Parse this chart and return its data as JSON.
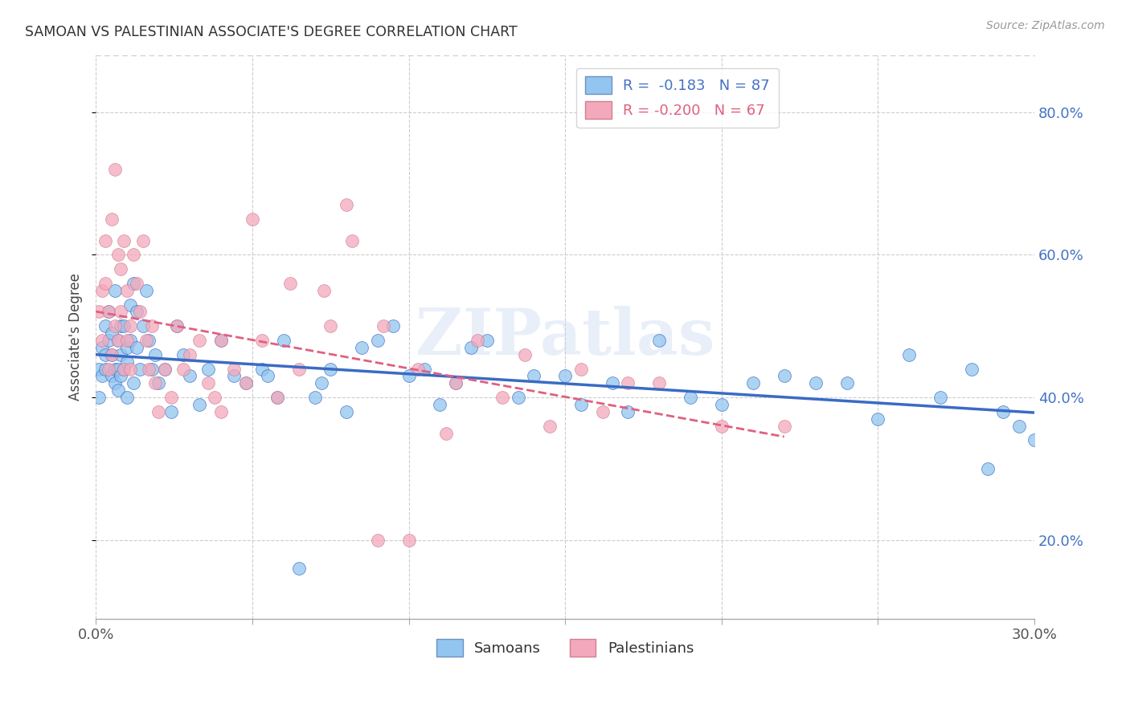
{
  "title": "SAMOAN VS PALESTINIAN ASSOCIATE'S DEGREE CORRELATION CHART",
  "source": "Source: ZipAtlas.com",
  "ylabel": "Associate's Degree",
  "ytick_vals": [
    0.2,
    0.4,
    0.6,
    0.8
  ],
  "xlim": [
    0.0,
    0.3
  ],
  "ylim": [
    0.09,
    0.88
  ],
  "color_samoans": "#92C5F0",
  "color_palestinians": "#F4A8BC",
  "color_line_samoans": "#3A6BC4",
  "color_line_palestinians": "#E06080",
  "watermark": "ZIPatlas",
  "samoans_x": [
    0.001,
    0.001,
    0.002,
    0.002,
    0.003,
    0.003,
    0.003,
    0.004,
    0.004,
    0.005,
    0.005,
    0.005,
    0.006,
    0.006,
    0.006,
    0.007,
    0.007,
    0.007,
    0.008,
    0.008,
    0.008,
    0.009,
    0.009,
    0.01,
    0.01,
    0.01,
    0.011,
    0.011,
    0.012,
    0.012,
    0.013,
    0.013,
    0.014,
    0.015,
    0.016,
    0.017,
    0.018,
    0.019,
    0.02,
    0.022,
    0.024,
    0.026,
    0.028,
    0.03,
    0.033,
    0.036,
    0.04,
    0.044,
    0.048,
    0.053,
    0.058,
    0.065,
    0.072,
    0.08,
    0.09,
    0.1,
    0.11,
    0.12,
    0.135,
    0.15,
    0.165,
    0.18,
    0.2,
    0.22,
    0.24,
    0.26,
    0.28,
    0.29,
    0.295,
    0.3,
    0.17,
    0.19,
    0.21,
    0.23,
    0.25,
    0.27,
    0.285,
    0.055,
    0.06,
    0.07,
    0.075,
    0.085,
    0.095,
    0.105,
    0.115,
    0.125,
    0.14,
    0.155
  ],
  "samoans_y": [
    0.44,
    0.4,
    0.47,
    0.43,
    0.46,
    0.5,
    0.44,
    0.48,
    0.52,
    0.49,
    0.43,
    0.46,
    0.55,
    0.42,
    0.44,
    0.48,
    0.44,
    0.41,
    0.5,
    0.43,
    0.46,
    0.5,
    0.44,
    0.47,
    0.45,
    0.4,
    0.53,
    0.48,
    0.56,
    0.42,
    0.52,
    0.47,
    0.44,
    0.5,
    0.55,
    0.48,
    0.44,
    0.46,
    0.42,
    0.44,
    0.38,
    0.5,
    0.46,
    0.43,
    0.39,
    0.44,
    0.48,
    0.43,
    0.42,
    0.44,
    0.4,
    0.16,
    0.42,
    0.38,
    0.48,
    0.43,
    0.39,
    0.47,
    0.4,
    0.43,
    0.42,
    0.48,
    0.39,
    0.43,
    0.42,
    0.46,
    0.44,
    0.38,
    0.36,
    0.34,
    0.38,
    0.4,
    0.42,
    0.42,
    0.37,
    0.4,
    0.3,
    0.43,
    0.48,
    0.4,
    0.44,
    0.47,
    0.5,
    0.44,
    0.42,
    0.48,
    0.43,
    0.39
  ],
  "palestinians_x": [
    0.001,
    0.002,
    0.002,
    0.003,
    0.003,
    0.004,
    0.004,
    0.005,
    0.005,
    0.006,
    0.006,
    0.007,
    0.007,
    0.008,
    0.008,
    0.009,
    0.009,
    0.01,
    0.01,
    0.011,
    0.011,
    0.012,
    0.013,
    0.014,
    0.015,
    0.016,
    0.017,
    0.018,
    0.019,
    0.02,
    0.022,
    0.024,
    0.026,
    0.028,
    0.03,
    0.033,
    0.036,
    0.04,
    0.044,
    0.048,
    0.053,
    0.058,
    0.065,
    0.073,
    0.082,
    0.092,
    0.103,
    0.115,
    0.13,
    0.145,
    0.162,
    0.18,
    0.2,
    0.22,
    0.155,
    0.17,
    0.122,
    0.137,
    0.08,
    0.09,
    0.1,
    0.112,
    0.05,
    0.062,
    0.04,
    0.038,
    0.075
  ],
  "palestinians_y": [
    0.52,
    0.55,
    0.48,
    0.56,
    0.62,
    0.52,
    0.44,
    0.65,
    0.46,
    0.72,
    0.5,
    0.6,
    0.48,
    0.58,
    0.52,
    0.62,
    0.44,
    0.55,
    0.48,
    0.5,
    0.44,
    0.6,
    0.56,
    0.52,
    0.62,
    0.48,
    0.44,
    0.5,
    0.42,
    0.38,
    0.44,
    0.4,
    0.5,
    0.44,
    0.46,
    0.48,
    0.42,
    0.38,
    0.44,
    0.42,
    0.48,
    0.4,
    0.44,
    0.55,
    0.62,
    0.5,
    0.44,
    0.42,
    0.4,
    0.36,
    0.38,
    0.42,
    0.36,
    0.36,
    0.44,
    0.42,
    0.48,
    0.46,
    0.67,
    0.2,
    0.2,
    0.35,
    0.65,
    0.56,
    0.48,
    0.4,
    0.5
  ]
}
